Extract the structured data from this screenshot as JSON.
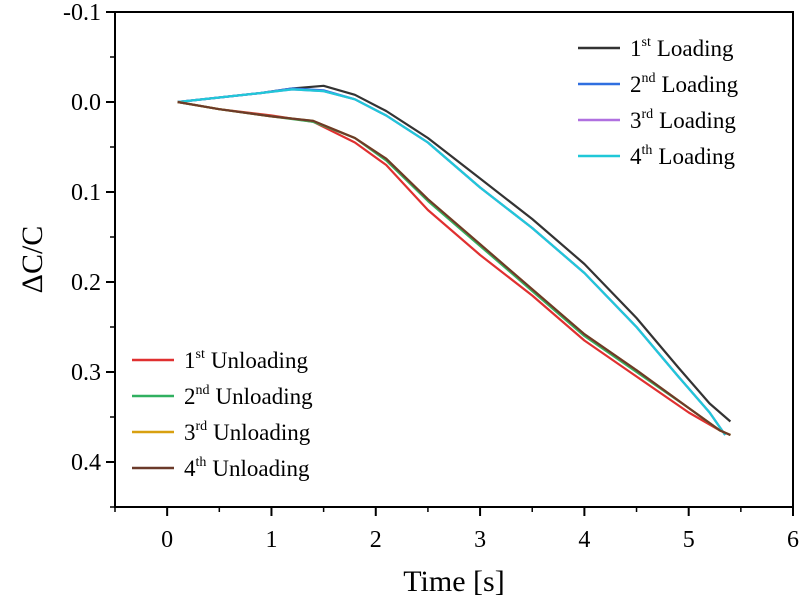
{
  "chart_data": {
    "type": "line",
    "xlabel": "Time [s]",
    "ylabel": "ΔC/C",
    "xlim": [
      -0.5,
      6
    ],
    "ylim": [
      -0.1,
      0.45
    ],
    "y_inverted": true,
    "x_ticks": [
      "0",
      "1",
      "2",
      "3",
      "4",
      "5",
      "6"
    ],
    "y_ticks": [
      "-0.1",
      "0.0",
      "0.1",
      "0.2",
      "0.3",
      "0.4"
    ],
    "legend_placement": [
      "top-right",
      "bottom-left"
    ],
    "series": [
      {
        "name": "1st Loading",
        "ordinal": "1",
        "suffix": "st",
        "label": "Loading",
        "color": "#333333",
        "x": [
          0.1,
          0.5,
          0.9,
          1.2,
          1.5,
          1.8,
          2.1,
          2.5,
          3.0,
          3.5,
          4.0,
          4.5,
          4.9,
          5.2,
          5.4
        ],
        "y": [
          0.0,
          -0.005,
          -0.01,
          -0.015,
          -0.018,
          -0.008,
          0.01,
          0.04,
          0.085,
          0.13,
          0.18,
          0.24,
          0.295,
          0.335,
          0.355
        ]
      },
      {
        "name": "2nd Loading",
        "ordinal": "2",
        "suffix": "nd",
        "label": "Loading",
        "color": "#2f6fe0",
        "x": [
          0.1,
          0.5,
          0.9,
          1.2,
          1.5,
          1.8,
          2.1,
          2.5,
          3.0,
          3.5,
          4.0,
          4.5,
          4.9,
          5.2,
          5.35
        ],
        "y": [
          0.0,
          -0.005,
          -0.01,
          -0.015,
          -0.013,
          -0.003,
          0.015,
          0.045,
          0.095,
          0.14,
          0.19,
          0.25,
          0.305,
          0.345,
          0.37
        ]
      },
      {
        "name": "3rd Loading",
        "ordinal": "3",
        "suffix": "rd",
        "label": "Loading",
        "color": "#b070e0",
        "x": [
          0.1,
          0.5,
          0.9,
          1.2,
          1.5,
          1.8,
          2.1,
          2.5,
          3.0,
          3.5,
          4.0,
          4.5,
          4.9,
          5.2,
          5.35
        ],
        "y": [
          0.0,
          -0.005,
          -0.01,
          -0.014,
          -0.012,
          -0.003,
          0.015,
          0.045,
          0.095,
          0.14,
          0.19,
          0.25,
          0.305,
          0.345,
          0.37
        ]
      },
      {
        "name": "4th Loading",
        "ordinal": "4",
        "suffix": "th",
        "label": "Loading",
        "color": "#20c8d8",
        "x": [
          0.1,
          0.5,
          0.9,
          1.2,
          1.5,
          1.8,
          2.1,
          2.5,
          3.0,
          3.5,
          4.0,
          4.5,
          4.9,
          5.2,
          5.35
        ],
        "y": [
          0.0,
          -0.005,
          -0.01,
          -0.014,
          -0.012,
          -0.003,
          0.015,
          0.045,
          0.095,
          0.14,
          0.19,
          0.25,
          0.305,
          0.345,
          0.37
        ]
      },
      {
        "name": "1st Unloading",
        "ordinal": "1",
        "suffix": "st",
        "label": "Unloading",
        "color": "#e03030",
        "x": [
          0.1,
          0.5,
          1.0,
          1.4,
          1.8,
          2.1,
          2.5,
          3.0,
          3.5,
          4.0,
          4.5,
          5.0,
          5.3,
          5.4
        ],
        "y": [
          0.0,
          0.008,
          0.015,
          0.022,
          0.045,
          0.07,
          0.12,
          0.17,
          0.215,
          0.265,
          0.305,
          0.345,
          0.365,
          0.37
        ]
      },
      {
        "name": "2nd Unloading",
        "ordinal": "2",
        "suffix": "nd",
        "label": "Unloading",
        "color": "#30b060",
        "x": [
          0.1,
          0.5,
          1.0,
          1.4,
          1.8,
          2.1,
          2.5,
          3.0,
          3.5,
          4.0,
          4.5,
          5.0,
          5.3,
          5.4
        ],
        "y": [
          0.0,
          0.008,
          0.016,
          0.022,
          0.04,
          0.065,
          0.11,
          0.16,
          0.21,
          0.26,
          0.3,
          0.34,
          0.365,
          0.37
        ]
      },
      {
        "name": "3rd Unloading",
        "ordinal": "3",
        "suffix": "rd",
        "label": "Unloading",
        "color": "#d8a010",
        "x": [
          0.1,
          0.5,
          1.0,
          1.4,
          1.8,
          2.1,
          2.5,
          3.0,
          3.5,
          4.0,
          4.5,
          5.0,
          5.3,
          5.4
        ],
        "y": [
          0.0,
          0.008,
          0.016,
          0.021,
          0.04,
          0.063,
          0.108,
          0.158,
          0.208,
          0.258,
          0.298,
          0.34,
          0.365,
          0.37
        ]
      },
      {
        "name": "4th Unloading",
        "ordinal": "4",
        "suffix": "th",
        "label": "Unloading",
        "color": "#6b3a2a",
        "x": [
          0.1,
          0.5,
          1.0,
          1.4,
          1.8,
          2.1,
          2.5,
          3.0,
          3.5,
          4.0,
          4.5,
          5.0,
          5.3,
          5.4
        ],
        "y": [
          0.0,
          0.008,
          0.016,
          0.021,
          0.04,
          0.063,
          0.108,
          0.158,
          0.208,
          0.258,
          0.298,
          0.34,
          0.365,
          0.37
        ]
      }
    ]
  }
}
